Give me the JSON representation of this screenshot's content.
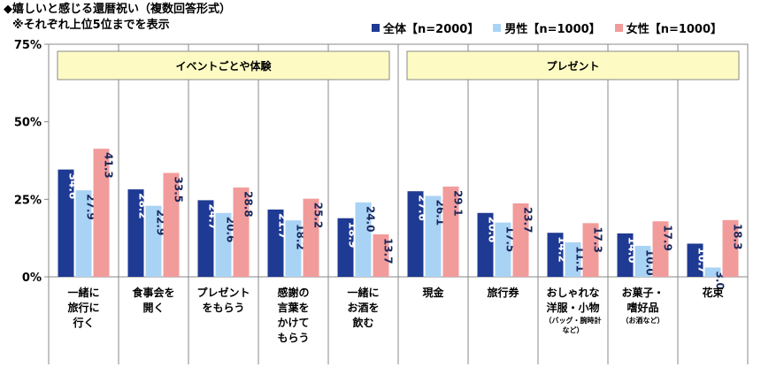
{
  "chart_data": {
    "type": "bar",
    "title": "◆嬉しいと感じる還暦祝い（複数回答形式）",
    "subtitle": "※それぞれ上位5位までを表示",
    "ylim": [
      0,
      75
    ],
    "yticks": [
      0,
      25,
      50,
      75
    ],
    "ytick_labels": [
      "0%",
      "25%",
      "50%",
      "75%"
    ],
    "groups": [
      {
        "label": "イベントごとや体験",
        "first": 0,
        "last": 4
      },
      {
        "label": "プレゼント",
        "first": 5,
        "last": 9
      }
    ],
    "categories": [
      {
        "lines": [
          "一緒に",
          "旅行に",
          "行く"
        ],
        "note": []
      },
      {
        "lines": [
          "食事会を",
          "開く"
        ],
        "note": []
      },
      {
        "lines": [
          "プレゼント",
          "をもらう"
        ],
        "note": []
      },
      {
        "lines": [
          "感謝の",
          "言葉を",
          "かけて",
          "もらう"
        ],
        "note": []
      },
      {
        "lines": [
          "一緒に",
          "お酒を",
          "飲む"
        ],
        "note": []
      },
      {
        "lines": [
          "現金"
        ],
        "note": []
      },
      {
        "lines": [
          "旅行券"
        ],
        "note": []
      },
      {
        "lines": [
          "おしゃれな",
          "洋服・小物"
        ],
        "note": [
          "（バッグ・腕時計",
          "など）"
        ]
      },
      {
        "lines": [
          "お菓子・",
          "嗜好品"
        ],
        "note": [
          "（お酒など）"
        ]
      },
      {
        "lines": [
          "花束"
        ],
        "note": []
      }
    ],
    "series": [
      {
        "name": "全体【n=2000】",
        "color": "#1f3a93",
        "label_color": "#ffffff",
        "values": [
          34.6,
          28.2,
          24.7,
          21.7,
          18.9,
          27.6,
          20.6,
          14.2,
          14.0,
          10.7
        ]
      },
      {
        "name": "男性【n=1000】",
        "color": "#a9d3f5",
        "label_color": "#1a2a5e",
        "values": [
          27.9,
          22.9,
          20.6,
          18.2,
          24.0,
          26.1,
          17.5,
          11.1,
          10.0,
          3.0
        ]
      },
      {
        "name": "女性【n=1000】",
        "color": "#f29b9b",
        "label_color": "#1a2a5e",
        "values": [
          41.3,
          33.5,
          28.8,
          25.2,
          13.7,
          29.1,
          23.7,
          17.3,
          17.9,
          18.3
        ]
      }
    ],
    "value_labels": [
      [
        "34.6",
        "28.2",
        "24.7",
        "21.7",
        "18.9",
        "27.6",
        "20.6",
        "14.2",
        "14.0",
        "10.7"
      ],
      [
        "27.9",
        "22.9",
        "20.6",
        "18.2",
        "24.0",
        "26.1",
        "17.5",
        "11.1",
        "10.0",
        "3.0"
      ],
      [
        "41.3",
        "33.5",
        "28.8",
        "25.2",
        "13.7",
        "29.1",
        "23.7",
        "17.3",
        "17.9",
        "18.3"
      ]
    ],
    "group_box_color": "#fdfbc3",
    "grid": false
  }
}
